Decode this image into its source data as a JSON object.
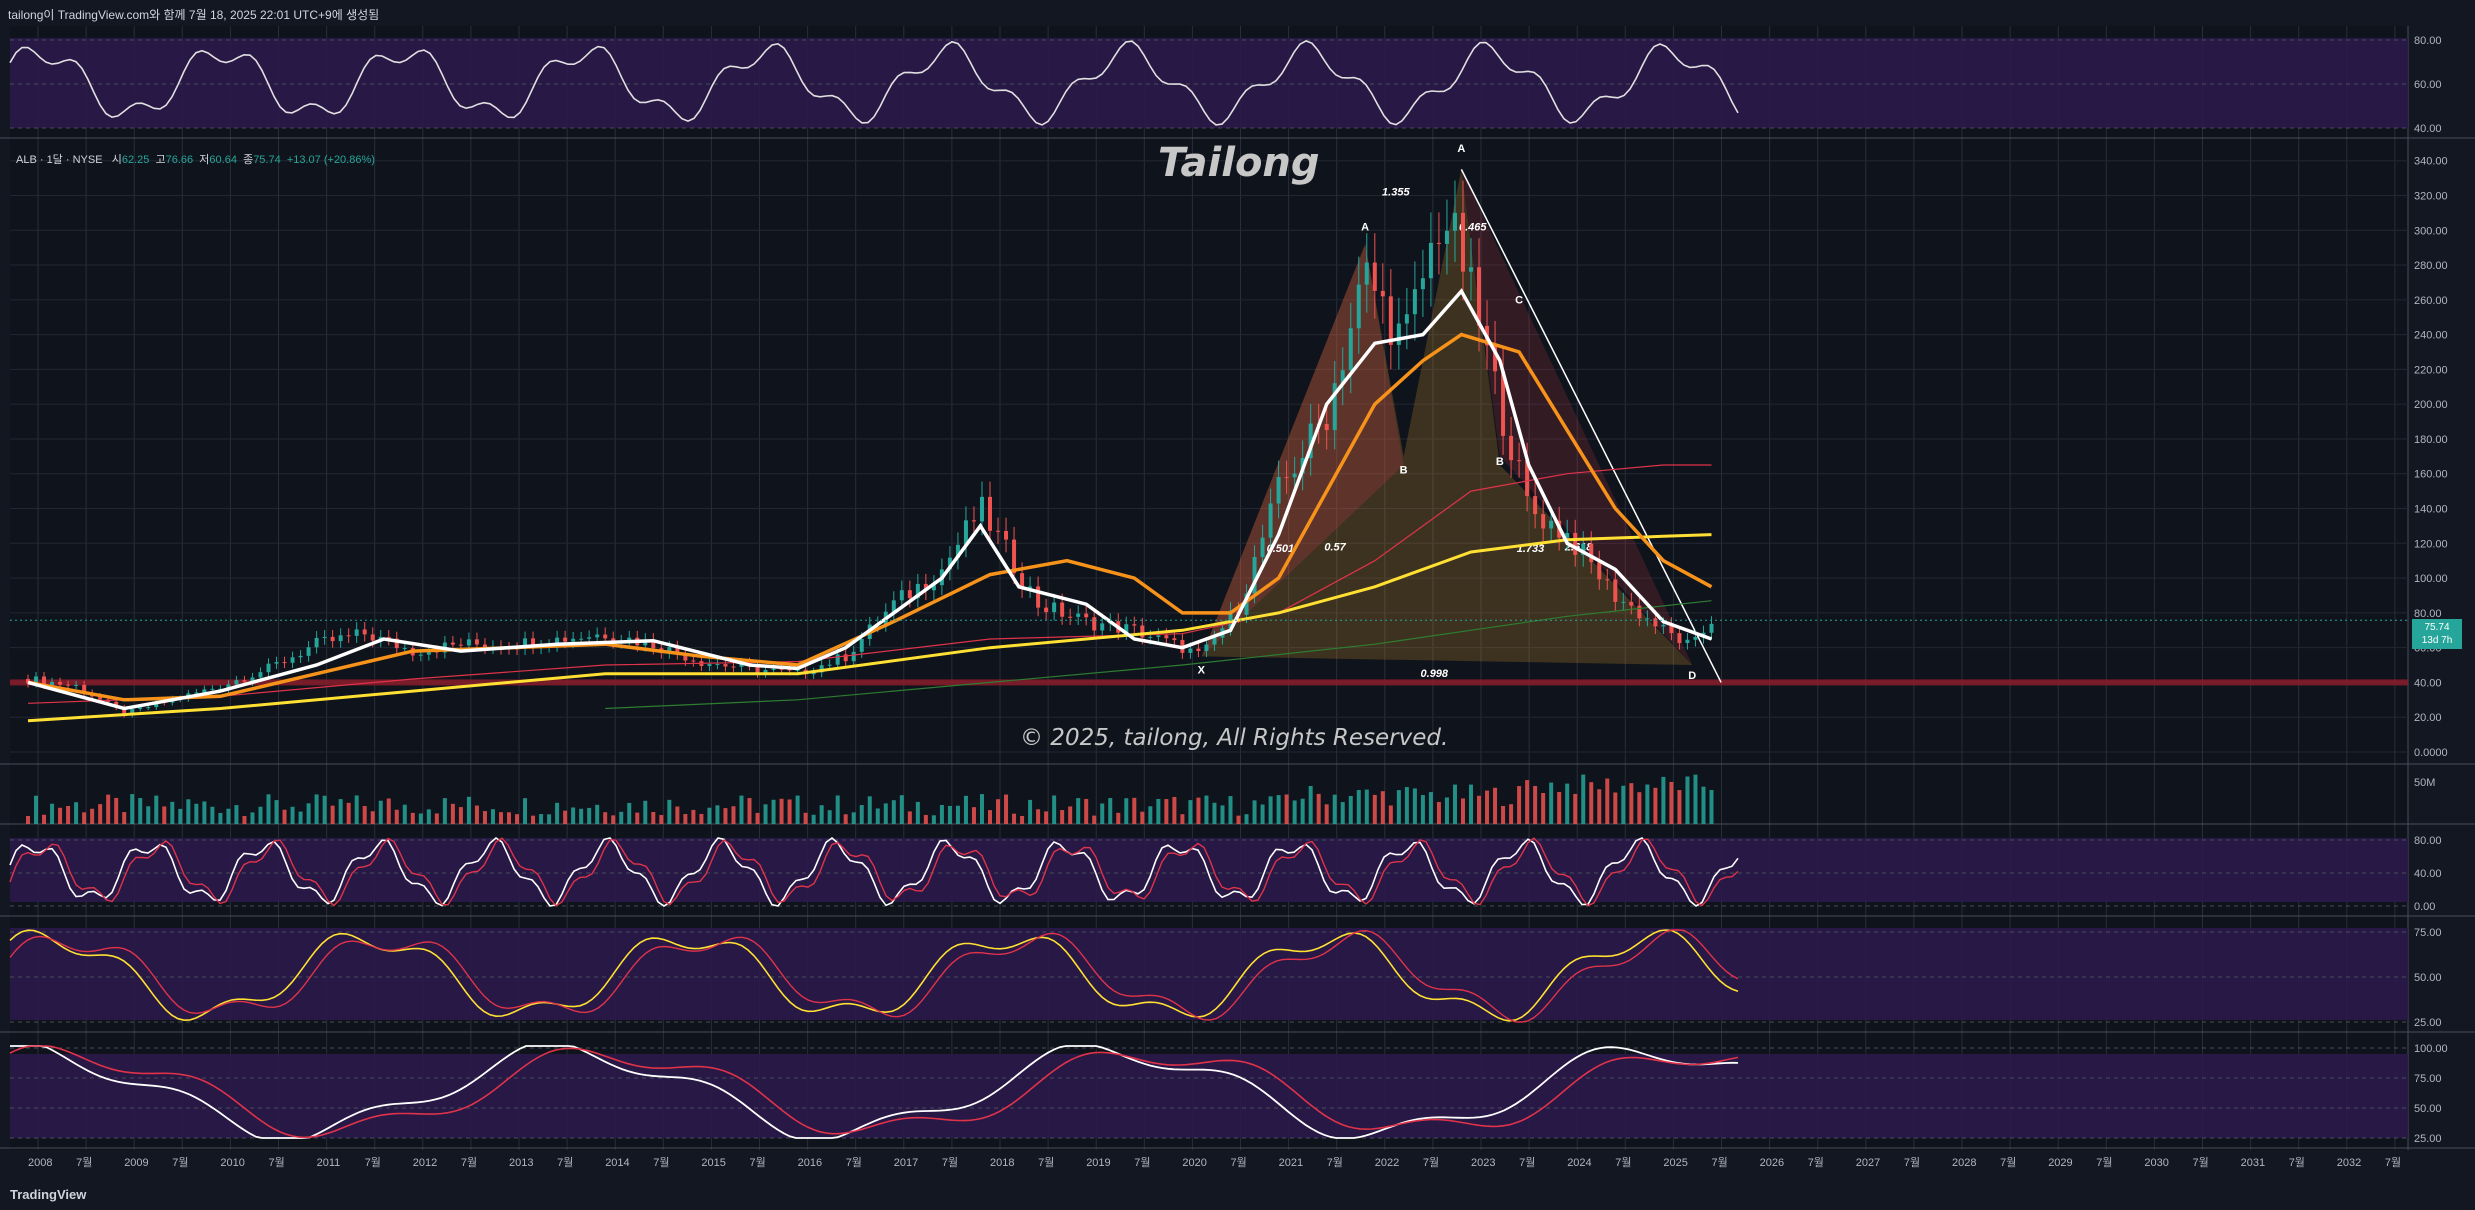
{
  "header": {
    "text": "tailong이 TradingView.com와 함께 7월 18, 2025 22:01 UTC+9에 생성됨"
  },
  "legend": {
    "symbol": "ALB · 1달 · NYSE",
    "open_label": "시",
    "open": "62.25",
    "high_label": "고",
    "high": "76.66",
    "low_label": "저",
    "low": "60.64",
    "close_label": "종",
    "close": "75.74",
    "change": "+13.07 (+20.86%)"
  },
  "watermark": {
    "title": "Tailong",
    "copyright": "© 2025, tailong, All Rights Reserved."
  },
  "price_badge": {
    "price": "75.74",
    "countdown": "13d 7h"
  },
  "footer": {
    "logo": "TradingView"
  },
  "colors": {
    "up": "#26a69a",
    "down": "#ef5350",
    "ma_white": "#ffffff",
    "ma_orange": "#f7931a",
    "ma_yellow": "#ffe033",
    "ma_red": "#e0334a",
    "ma_green": "#2e7d32",
    "purple_band": "#2a1a4a"
  },
  "chart_data": {
    "type": "line",
    "title": "ALB · 1달 · NYSE",
    "x_axis_labels": [
      "2008",
      "7월",
      "2009",
      "7월",
      "2010",
      "7월",
      "2011",
      "7월",
      "2012",
      "7월",
      "2013",
      "7월",
      "2014",
      "7월",
      "2015",
      "7월",
      "2016",
      "7월",
      "2017",
      "7월",
      "2018",
      "7월",
      "2019",
      "7월",
      "2020",
      "7월",
      "2021",
      "7월",
      "2022",
      "7월",
      "2023",
      "7월",
      "2024",
      "7월",
      "2025",
      "7월",
      "2026",
      "7월",
      "2027",
      "7월",
      "2028",
      "7월",
      "2029",
      "7월",
      "2030",
      "7월",
      "2031",
      "7월",
      "2032",
      "7월"
    ],
    "price_axis": {
      "ticks": [
        "340.00",
        "320.00",
        "300.00",
        "280.00",
        "260.00",
        "240.00",
        "220.00",
        "200.00",
        "180.00",
        "160.00",
        "140.00",
        "120.00",
        "100.00",
        "80.00",
        "60.00",
        "40.00",
        "20.00",
        "0.0000"
      ],
      "ylim": [
        0,
        345
      ]
    },
    "price_series": {
      "x": [
        2008.0,
        2008.5,
        2009.0,
        2009.5,
        2010.0,
        2010.5,
        2011.0,
        2011.5,
        2012.0,
        2012.5,
        2013.0,
        2013.5,
        2014.0,
        2014.5,
        2015.0,
        2015.5,
        2016.0,
        2016.5,
        2017.0,
        2017.5,
        2017.9,
        2018.5,
        2019.0,
        2019.5,
        2020.0,
        2020.2,
        2020.6,
        2021.0,
        2021.5,
        2021.9,
        2022.3,
        2022.7,
        2022.9,
        2023.3,
        2023.6,
        2024.0,
        2024.5,
        2025.0,
        2025.3,
        2025.5
      ],
      "close": [
        42,
        38,
        22,
        30,
        38,
        48,
        62,
        68,
        58,
        62,
        62,
        65,
        68,
        62,
        52,
        48,
        45,
        55,
        85,
        105,
        140,
        85,
        75,
        70,
        60,
        55,
        85,
        150,
        195,
        275,
        235,
        310,
        285,
        200,
        140,
        125,
        90,
        70,
        60,
        75.74
      ]
    },
    "ma_white": {
      "x": [
        2008,
        2009,
        2009.5,
        2010,
        2011,
        2011.7,
        2012.5,
        2013.5,
        2014.5,
        2015.5,
        2016,
        2016.5,
        2017,
        2017.5,
        2017.9,
        2018.3,
        2019,
        2019.5,
        2020,
        2020.5,
        2021,
        2021.5,
        2022,
        2022.5,
        2022.9,
        2023.3,
        2023.6,
        2024,
        2024.5,
        2025,
        2025.5
      ],
      "y": [
        40,
        25,
        30,
        35,
        50,
        65,
        58,
        62,
        64,
        50,
        48,
        60,
        80,
        100,
        130,
        95,
        85,
        65,
        60,
        70,
        125,
        200,
        235,
        240,
        265,
        225,
        165,
        120,
        105,
        75,
        65
      ]
    },
    "ma_orange": {
      "x": [
        2008,
        2009,
        2010,
        2011,
        2012,
        2013,
        2014,
        2015,
        2016,
        2017,
        2018,
        2018.8,
        2019.5,
        2020,
        2020.5,
        2021,
        2021.5,
        2022,
        2022.5,
        2022.9,
        2023.5,
        2024,
        2024.5,
        2025,
        2025.5
      ],
      "y": [
        40,
        30,
        32,
        45,
        58,
        60,
        62,
        55,
        50,
        75,
        102,
        110,
        100,
        80,
        80,
        100,
        150,
        200,
        225,
        240,
        230,
        185,
        140,
        110,
        95
      ]
    },
    "ma_yellow": {
      "x": [
        2008,
        2010,
        2012,
        2014,
        2016,
        2018,
        2020,
        2021,
        2022,
        2023,
        2024,
        2025,
        2025.5
      ],
      "y": [
        18,
        25,
        35,
        45,
        45,
        60,
        70,
        80,
        95,
        115,
        122,
        124,
        125
      ]
    },
    "ma_red": {
      "x": [
        2008,
        2010,
        2012,
        2014,
        2016,
        2018,
        2020,
        2021,
        2022,
        2023,
        2024,
        2025,
        2025.5
      ],
      "y": [
        28,
        32,
        42,
        50,
        52,
        65,
        68,
        80,
        110,
        150,
        160,
        165,
        165
      ]
    },
    "ma_green": {
      "x": [
        2014.0,
        2016,
        2018,
        2020,
        2022,
        2024,
        2025.5
      ],
      "y": [
        25,
        30,
        40,
        50,
        62,
        78,
        87
      ]
    },
    "harmonic_labels": [
      "X",
      "A",
      "B",
      "C",
      "D",
      "A",
      "B"
    ],
    "fib_ratios": [
      "1.355",
      "0.465",
      "0.501",
      "0.57",
      "1.733",
      "2.618",
      "0.998"
    ],
    "horizontal_support": 40,
    "volume_axis": {
      "ticks": [
        "50M"
      ]
    },
    "rsi_top_axis": {
      "ticks": [
        "80.00",
        "60.00",
        "40.00"
      ]
    },
    "stoch_axis": {
      "ticks": [
        "80.00",
        "40.00",
        "0.00"
      ]
    },
    "stoch2_axis": {
      "ticks": [
        "75.00",
        "50.00",
        "25.00"
      ]
    },
    "stoch3_axis": {
      "ticks": [
        "100.00",
        "75.00",
        "50.00",
        "25.00"
      ]
    }
  }
}
